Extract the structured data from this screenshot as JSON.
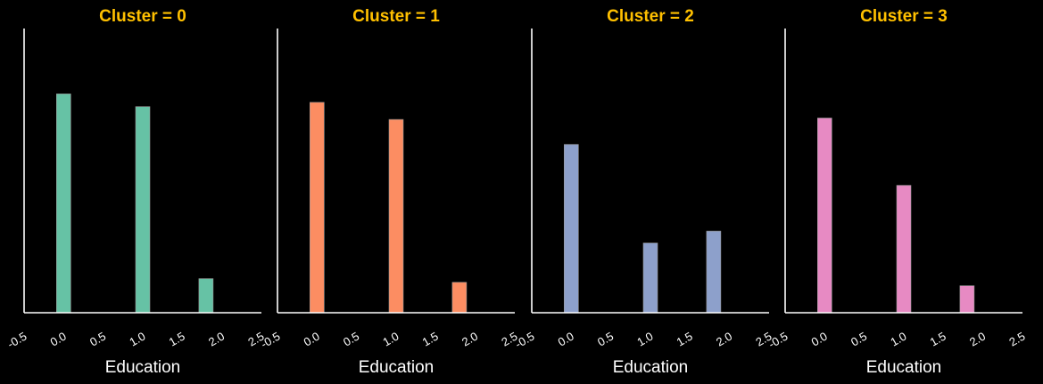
{
  "colors": {
    "background": "#000000",
    "title": "#ffc000",
    "axis": "#ffffff",
    "text": "#ffffff"
  },
  "chart_data": [
    {
      "type": "bar",
      "title": "Cluster = 0",
      "xlabel": "Education",
      "ylabel": "",
      "xlim": [
        -0.5,
        2.5
      ],
      "ylim": [
        0,
        1
      ],
      "xticks": [
        "-0.5",
        "0.0",
        "0.5",
        "1.0",
        "1.5",
        "2.0",
        "2.5"
      ],
      "color": "#66c2a5",
      "grid": false,
      "categories": [
        0,
        1,
        1.8
      ],
      "values": [
        0.77,
        0.725,
        0.12
      ]
    },
    {
      "type": "bar",
      "title": "Cluster = 1",
      "xlabel": "Education",
      "ylabel": "",
      "xlim": [
        -0.5,
        2.5
      ],
      "ylim": [
        0,
        1
      ],
      "xticks": [
        "-0.5",
        "0.0",
        "0.5",
        "1.0",
        "1.5",
        "2.0",
        "2.5"
      ],
      "color": "#fc8d62",
      "grid": false,
      "categories": [
        0,
        1,
        1.8
      ],
      "values": [
        0.74,
        0.68,
        0.107
      ]
    },
    {
      "type": "bar",
      "title": "Cluster = 2",
      "xlabel": "Education",
      "ylabel": "",
      "xlim": [
        -0.5,
        2.5
      ],
      "ylim": [
        0,
        1
      ],
      "xticks": [
        "-0.5",
        "0.0",
        "0.5",
        "1.0",
        "1.5",
        "2.0",
        "2.5"
      ],
      "color": "#8da0cb",
      "grid": false,
      "categories": [
        0,
        1,
        1.8
      ],
      "values": [
        0.592,
        0.245,
        0.287
      ]
    },
    {
      "type": "bar",
      "title": "Cluster = 3",
      "xlabel": "Education",
      "ylabel": "",
      "xlim": [
        -0.5,
        2.5
      ],
      "ylim": [
        0,
        1
      ],
      "xticks": [
        "-0.5",
        "0.0",
        "0.5",
        "1.0",
        "1.5",
        "2.0",
        "2.5"
      ],
      "color": "#e78ac3",
      "grid": false,
      "categories": [
        0,
        1,
        1.8
      ],
      "values": [
        0.685,
        0.448,
        0.095
      ]
    }
  ]
}
